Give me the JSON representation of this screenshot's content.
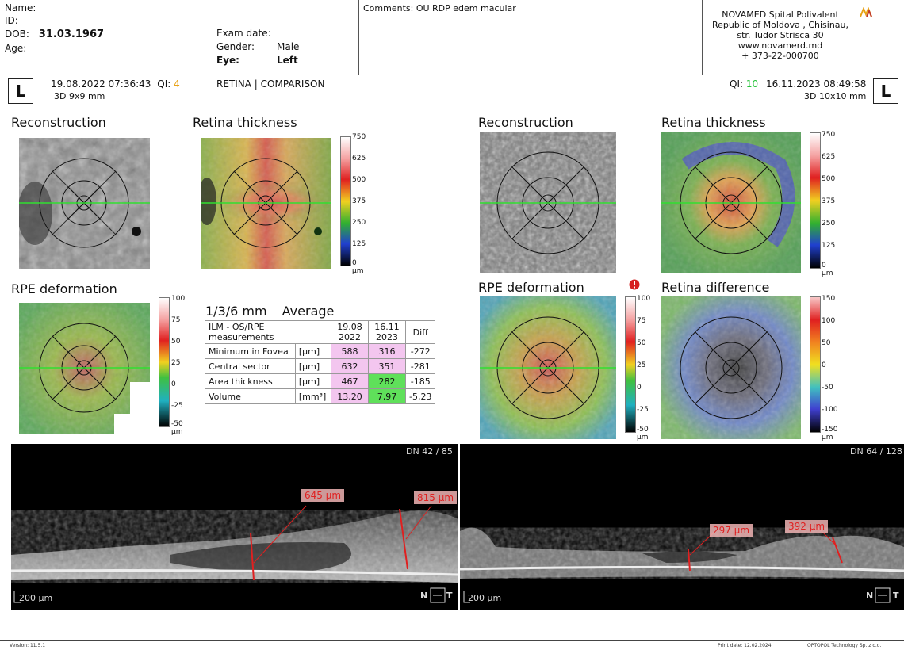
{
  "header": {
    "name_label": "Name:",
    "id_label": "ID:",
    "dob_label": "DOB:",
    "dob_value": "31.03.1967",
    "age_label": "Age:",
    "exam_date_label": "Exam date:",
    "gender_label": "Gender:",
    "gender_value": "Male",
    "eye_label": "Eye:",
    "eye_value": "Left",
    "comments": "Comments: OU RDP edem macular",
    "clinic_name": "NOVAMED Spital Polivalent",
    "clinic_country": "Republic of Moldova , Chisinau,",
    "clinic_street": "str. Tudor Strisca 30",
    "clinic_web": "www.novamerd.md",
    "clinic_phone": "+ 373-22-000700",
    "logo_text": "NOVAMED"
  },
  "left_exam": {
    "eye_letter": "L",
    "datetime": "19.08.2022 07:36:43",
    "qi_label": "QI:",
    "qi_value": "4",
    "scan": "3D  9x9 mm"
  },
  "mode_label": "RETINA | COMPARISON",
  "right_exam": {
    "eye_letter": "L",
    "qi_label": "QI:",
    "qi_value": "10",
    "datetime": "16.11.2023 08:49:58",
    "scan": "3D  10x10 mm"
  },
  "panels": {
    "reconstruction": "Reconstruction",
    "retina_thickness": "Retina thickness",
    "rpe_deformation": "RPE deformation",
    "retina_difference": "Retina difference"
  },
  "thickness_scale": [
    "750",
    "625",
    "500",
    "375",
    "250",
    "125",
    "0",
    "µm"
  ],
  "rpe_scale": [
    "100",
    "75",
    "50",
    "25",
    "0",
    "-25",
    "-50",
    "µm"
  ],
  "diff_scale": [
    "150",
    "100",
    "50",
    "0",
    "-50",
    "-100",
    "-150",
    "µm"
  ],
  "table": {
    "title": "1/3/6 mm",
    "mode": "Average",
    "col_header": "ILM - OS/RPE measurements",
    "col1": "19.08 2022",
    "col2": "16.11 2023",
    "col3": "Diff",
    "rows": [
      {
        "label": "Minimum in Fovea",
        "unit": "[µm]",
        "v1": "588",
        "v2": "316",
        "diff": "-272"
      },
      {
        "label": "Central sector",
        "unit": "[µm]",
        "v1": "632",
        "v2": "351",
        "diff": "-281"
      },
      {
        "label": "Area thickness",
        "unit": "[µm]",
        "v1": "467",
        "v2": "282",
        "diff": "-185"
      },
      {
        "label": "Volume",
        "unit": "[mm³]",
        "v1": "13,20",
        "v2": "7,97",
        "diff": "-5,23"
      }
    ]
  },
  "oct_left": {
    "dn": "DN  42 / 85",
    "m1": "645 µm",
    "m2": "815 µm",
    "scale": "200 µm",
    "orient_n": "N",
    "orient_t": "T"
  },
  "oct_right": {
    "dn": "DN  64 / 128",
    "m1": "297 µm",
    "m2": "392 µm",
    "scale": "200 µm",
    "orient_n": "N",
    "orient_t": "T"
  },
  "footer": {
    "version": "Version: 11.5.1",
    "print_date": "Print date: 12.02.2024",
    "company": "OPTOPOL Technology Sp. z o.o."
  },
  "colors": {
    "qi_low": "#e8a317",
    "qi_high": "#27c33a",
    "measure_red": "#e02020",
    "pink_cell": "#f3c6ef",
    "green_cell": "#5fe05a"
  }
}
